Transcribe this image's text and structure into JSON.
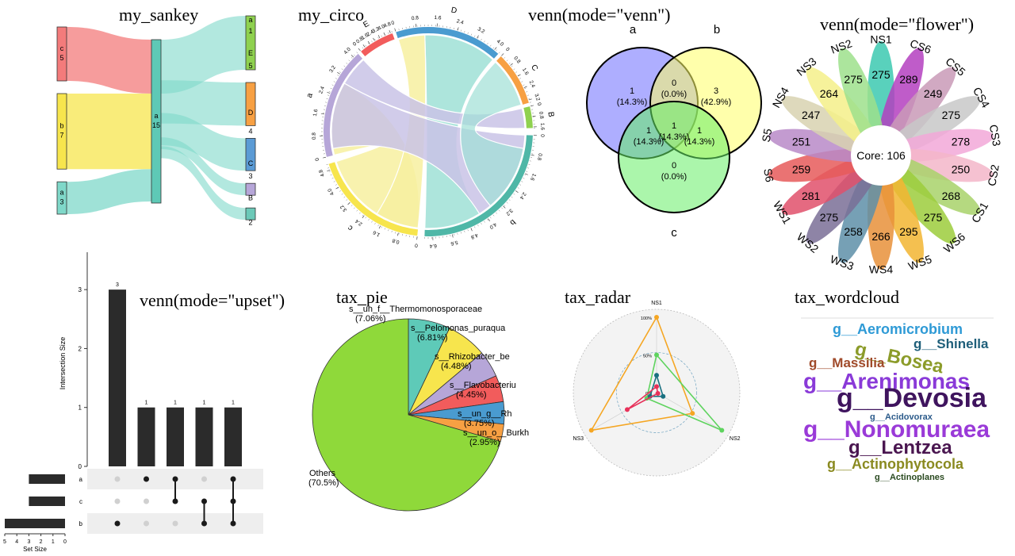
{
  "titles": {
    "sankey": "my_sankey",
    "circo": "my_circo",
    "venn": "venn(mode=\"venn\")",
    "flower": "venn(mode=\"flower\")",
    "upset": "venn(mode=\"upset\")",
    "pie": "tax_pie",
    "radar": "tax_radar",
    "wordcloud": "tax_wordcloud"
  },
  "chart_data": [
    {
      "id": "sankey",
      "type": "sankey",
      "nodes_left": [
        {
          "name": "c",
          "value": 5,
          "color": "#f37b7b"
        },
        {
          "name": "b",
          "value": 7,
          "color": "#f7e54d"
        },
        {
          "name": "a",
          "value": 3,
          "color": "#7fd8c9"
        }
      ],
      "node_mid": {
        "name": "a",
        "value": 15,
        "color": "#5ec9b6"
      },
      "nodes_right": [
        {
          "name": "E",
          "value": 5,
          "color": "#8fd14f",
          "label_top": "a",
          "label_mid": "1"
        },
        {
          "name": "D",
          "value": 4,
          "color": "#f7a043"
        },
        {
          "name": "C",
          "value": 3,
          "color": "#5b9bd5"
        },
        {
          "name": "B",
          "value": 2,
          "color": "#b6a6d8"
        },
        {
          "name": "2",
          "value": 2,
          "color": "#6cc9b8"
        }
      ]
    },
    {
      "id": "circo",
      "type": "chord",
      "sectors": [
        {
          "name": "D",
          "color": "#4a9bd0",
          "ticks": [
            "0",
            "0.8",
            "1.6",
            "2.4",
            "3.2",
            "4.0"
          ]
        },
        {
          "name": "C",
          "color": "#f7a043",
          "ticks": [
            "0",
            "0.8",
            "1.6",
            "2.4",
            "3.2"
          ]
        },
        {
          "name": "B",
          "color": "#8fd14f",
          "ticks": [
            "0",
            "0.8",
            "1.6"
          ]
        },
        {
          "name": "b",
          "color": "#4fb7a7",
          "ticks": [
            "0",
            "0.8",
            "1.6",
            "2.4",
            "3.2",
            "4.0",
            "4.8",
            "5.6",
            "6.4"
          ]
        },
        {
          "name": "c",
          "color": "#f7e54d",
          "ticks": [
            "0",
            "0.8",
            "1.6",
            "2.4",
            "3.2",
            "4.0",
            "4.8"
          ]
        },
        {
          "name": "a",
          "color": "#b6a6d8",
          "ticks": [
            "0",
            "0.8",
            "1.6",
            "2.4",
            "3.2",
            "4.0"
          ]
        },
        {
          "name": "E",
          "color": "#f25c5c",
          "ticks": [
            "0",
            "0.8",
            "1.6",
            "2.4",
            "3.2",
            "4.0",
            "4.8"
          ]
        }
      ]
    },
    {
      "id": "venn",
      "type": "venn",
      "sets": [
        {
          "name": "a",
          "color": "#6b6bff"
        },
        {
          "name": "b",
          "color": "#ffff66"
        },
        {
          "name": "c",
          "color": "#66ee66"
        }
      ],
      "regions": [
        {
          "key": "a",
          "value": "1",
          "pct": "(14.3%)"
        },
        {
          "key": "ab",
          "value": "0",
          "pct": "(0.0%)"
        },
        {
          "key": "b",
          "value": "3",
          "pct": "(42.9%)"
        },
        {
          "key": "ac",
          "value": "1",
          "pct": "(14.3%)"
        },
        {
          "key": "abc",
          "value": "1",
          "pct": "(14.3%)"
        },
        {
          "key": "bc",
          "value": "1",
          "pct": "(14.3%)"
        },
        {
          "key": "c",
          "value": "0",
          "pct": "(0.0%)"
        }
      ]
    },
    {
      "id": "flower",
      "type": "flower",
      "core_label": "Core: 106",
      "petals": [
        {
          "name": "NS1",
          "value": 275,
          "color": "#3cc9b0"
        },
        {
          "name": "CS6",
          "value": 289,
          "color": "#b43fbf"
        },
        {
          "name": "CS5",
          "value": 249,
          "color": "#c99ab7"
        },
        {
          "name": "CS4",
          "value": 275,
          "color": "#c8c8c8"
        },
        {
          "name": "CS3",
          "value": 278,
          "color": "#f2a8d8"
        },
        {
          "name": "CS2",
          "value": 250,
          "color": "#f3b6c9"
        },
        {
          "name": "CS1",
          "value": 268,
          "color": "#a8d26a"
        },
        {
          "name": "WS6",
          "value": 275,
          "color": "#9ccc3c"
        },
        {
          "name": "WS5",
          "value": 295,
          "color": "#f2b531"
        },
        {
          "name": "WS4",
          "value": 266,
          "color": "#e8913a"
        },
        {
          "name": "WS3",
          "value": 258,
          "color": "#5e8fa8"
        },
        {
          "name": "WS2",
          "value": 275,
          "color": "#7a6f96"
        },
        {
          "name": "WS1",
          "value": 281,
          "color": "#e0506b"
        },
        {
          "name": "S6",
          "value": 259,
          "color": "#e65a5a"
        },
        {
          "name": "S5",
          "value": 251,
          "color": "#b98ac8"
        },
        {
          "name": "NS4",
          "value": 247,
          "color": "#d8d2b0"
        },
        {
          "name": "NS3",
          "value": 264,
          "color": "#f5f08a"
        },
        {
          "name": "NS2",
          "value": 275,
          "color": "#9ee08c"
        }
      ]
    },
    {
      "id": "upset",
      "type": "bar",
      "ylabel": "Intersection Size",
      "ylim": [
        0,
        3.5
      ],
      "yticks": [
        "0",
        "1",
        "2",
        "3"
      ],
      "values": [
        3,
        1,
        1,
        1,
        1
      ],
      "data_labels": [
        "3",
        "1",
        "1",
        "1",
        "1"
      ],
      "set_names": [
        "a",
        "c",
        "b"
      ],
      "set_sizes": [
        3,
        3,
        5
      ],
      "set_size_label": "Set Size",
      "set_size_ticks": [
        "5",
        "4",
        "3",
        "2",
        "1",
        "0"
      ],
      "membership": [
        [
          "b"
        ],
        [
          "a"
        ],
        [
          "a",
          "c"
        ],
        [
          "c",
          "b"
        ],
        [
          "a",
          "c",
          "b"
        ]
      ]
    },
    {
      "id": "pie",
      "type": "pie",
      "slices": [
        {
          "label": "s__un_f__Thermomonosporaceae",
          "pct_label": "(7.06%)",
          "value": 7.06,
          "color": "#5ecab8"
        },
        {
          "label": "s__Pelomonas_puraqua",
          "pct_label": "(6.81%)",
          "value": 6.81,
          "color": "#f7e54d"
        },
        {
          "label": "s__Rhizobacter_be",
          "pct_label": "(4.48%)",
          "value": 4.48,
          "color": "#b6a6d8"
        },
        {
          "label": "s__Flavobacteriu",
          "pct_label": "(4.45%)",
          "value": 4.45,
          "color": "#f25c5c"
        },
        {
          "label": "s__un_g__Rh",
          "pct_label": "(3.75%)",
          "value": 3.75,
          "color": "#4a9bd0"
        },
        {
          "label": "s__un_o__Burkh",
          "pct_label": "(2.95%)",
          "value": 2.95,
          "color": "#f7a043"
        },
        {
          "label": "Others",
          "pct_label": "(70.5%)",
          "value": 70.5,
          "color": "#8fd93a"
        }
      ]
    },
    {
      "id": "radar",
      "type": "radar",
      "axes": [
        "NS1",
        "NS2",
        "NS3"
      ],
      "ring_labels": [
        "0%",
        "50%",
        "100%"
      ],
      "series": [
        {
          "color": "#f5a623",
          "values": [
            1.0,
            0.55,
            1.0
          ]
        },
        {
          "color": "#5ed35e",
          "values": [
            0.5,
            1.0,
            0.15
          ]
        },
        {
          "color": "#1a7080",
          "values": [
            0.23,
            0.1,
            0.1
          ]
        },
        {
          "color": "#e8315a",
          "values": [
            0.08,
            0.02,
            0.45
          ]
        }
      ]
    },
    {
      "id": "wordcloud",
      "type": "wordcloud",
      "words": [
        {
          "text": "g__Aeromicrobium",
          "color": "#2e9ad6",
          "size": 18
        },
        {
          "text": "g__Bosea",
          "color": "#8c9c2a",
          "size": 24
        },
        {
          "text": "g__Shinella",
          "color": "#1f5f7a",
          "size": 17
        },
        {
          "text": "g__Massilia",
          "color": "#a04a2a",
          "size": 17
        },
        {
          "text": "g__Arenimonas",
          "color": "#8a3ad8",
          "size": 28
        },
        {
          "text": "g__Devosia",
          "color": "#3f145e",
          "size": 34
        },
        {
          "text": "g__Acidovorax",
          "color": "#2b5a8a",
          "size": 11
        },
        {
          "text": "g__Nonomuraea",
          "color": "#9a3ad8",
          "size": 30
        },
        {
          "text": "g__Lentzea",
          "color": "#4a1650",
          "size": 24
        },
        {
          "text": "g__Actinophytocola",
          "color": "#8a8a20",
          "size": 18
        },
        {
          "text": "g__Actinoplanes",
          "color": "#2a4a20",
          "size": 11
        }
      ]
    }
  ]
}
